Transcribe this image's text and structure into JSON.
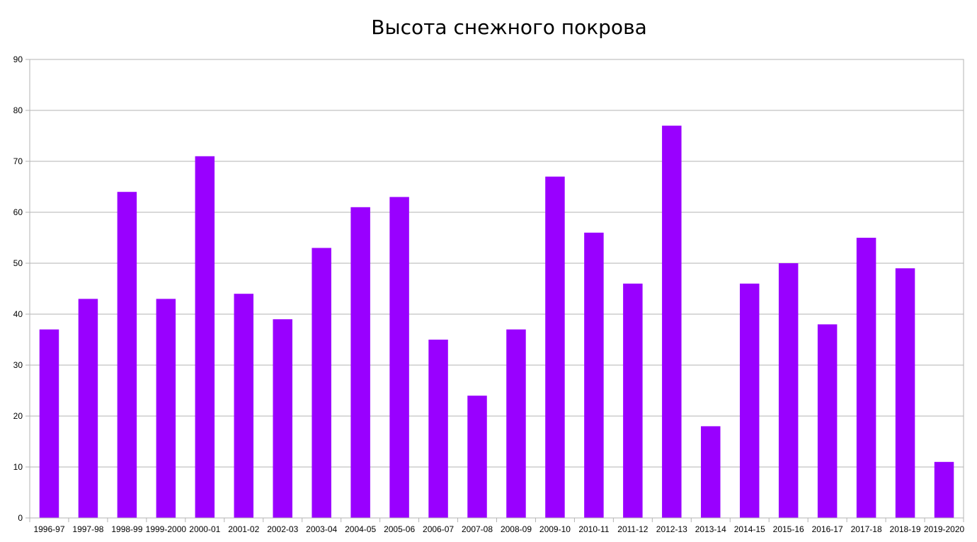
{
  "chart_data": {
    "type": "bar",
    "title": "Высота снежного покрова",
    "xlabel": "",
    "ylabel": "",
    "ylim": [
      0,
      90
    ],
    "yticks": [
      0,
      10,
      20,
      30,
      40,
      50,
      60,
      70,
      80,
      90
    ],
    "grid": true,
    "legend": "none",
    "bar_color": "#9900ff",
    "categories": [
      "1996-97",
      "1997-98",
      "1998-99",
      "1999-2000",
      "2000-01",
      "2001-02",
      "2002-03",
      "2003-04",
      "2004-05",
      "2005-06",
      "2006-07",
      "2007-08",
      "2008-09",
      "2009-10",
      "2010-11",
      "2011-12",
      "2012-13",
      "2013-14",
      "2014-15",
      "2015-16",
      "2016-17",
      "2017-18",
      "2018-19",
      "2019-2020"
    ],
    "values": [
      37,
      43,
      64,
      43,
      71,
      44,
      39,
      53,
      61,
      63,
      35,
      24,
      37,
      67,
      56,
      46,
      77,
      18,
      46,
      50,
      38,
      55,
      49,
      11
    ]
  }
}
